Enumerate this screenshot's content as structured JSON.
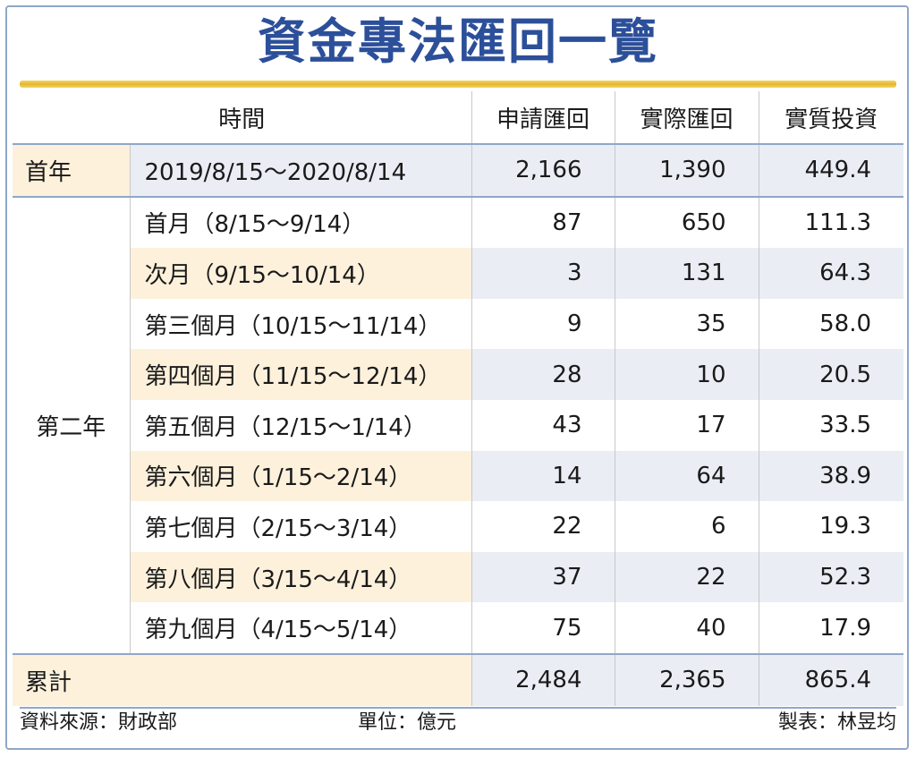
{
  "title": "資金專法匯回一覽",
  "headers": {
    "period": "時間",
    "applied": "申請匯回",
    "actual": "實際匯回",
    "investment": "實質投資"
  },
  "year1": {
    "label": "首年",
    "period": "2019/8/15～2020/8/14",
    "applied": "2,166",
    "actual": "1,390",
    "investment": "449.4"
  },
  "year2_label": "第二年",
  "months": [
    {
      "period": "首月（8/15～9/14）",
      "applied": "87",
      "actual": "650",
      "investment": "111.3"
    },
    {
      "period": "次月（9/15～10/14）",
      "applied": "3",
      "actual": "131",
      "investment": "64.3"
    },
    {
      "period": "第三個月（10/15～11/14）",
      "applied": "9",
      "actual": "35",
      "investment": "58.0"
    },
    {
      "period": "第四個月（11/15～12/14）",
      "applied": "28",
      "actual": "10",
      "investment": "20.5"
    },
    {
      "period": "第五個月（12/15～1/14）",
      "applied": "43",
      "actual": "17",
      "investment": "33.5"
    },
    {
      "period": "第六個月（1/15～2/14）",
      "applied": "14",
      "actual": "64",
      "investment": "38.9"
    },
    {
      "period": "第七個月（2/15～3/14）",
      "applied": "22",
      "actual": "6",
      "investment": "19.3"
    },
    {
      "period": "第八個月（3/15～4/14）",
      "applied": "37",
      "actual": "22",
      "investment": "52.3"
    },
    {
      "period": "第九個月（4/15～5/14）",
      "applied": "75",
      "actual": "40",
      "investment": "17.9"
    }
  ],
  "total": {
    "label": "累計",
    "applied": "2,484",
    "actual": "2,365",
    "investment": "865.4"
  },
  "footer": {
    "source": "資料來源：財政部",
    "unit": "單位：億元",
    "maker": "製表：林昱均"
  },
  "colors": {
    "title": "#2c4f9a",
    "rule": "#8fa7c9",
    "shade_blue": "#eaedf4",
    "shade_cream": "#fdf1dc",
    "gold_bar": "#e3b82e"
  }
}
